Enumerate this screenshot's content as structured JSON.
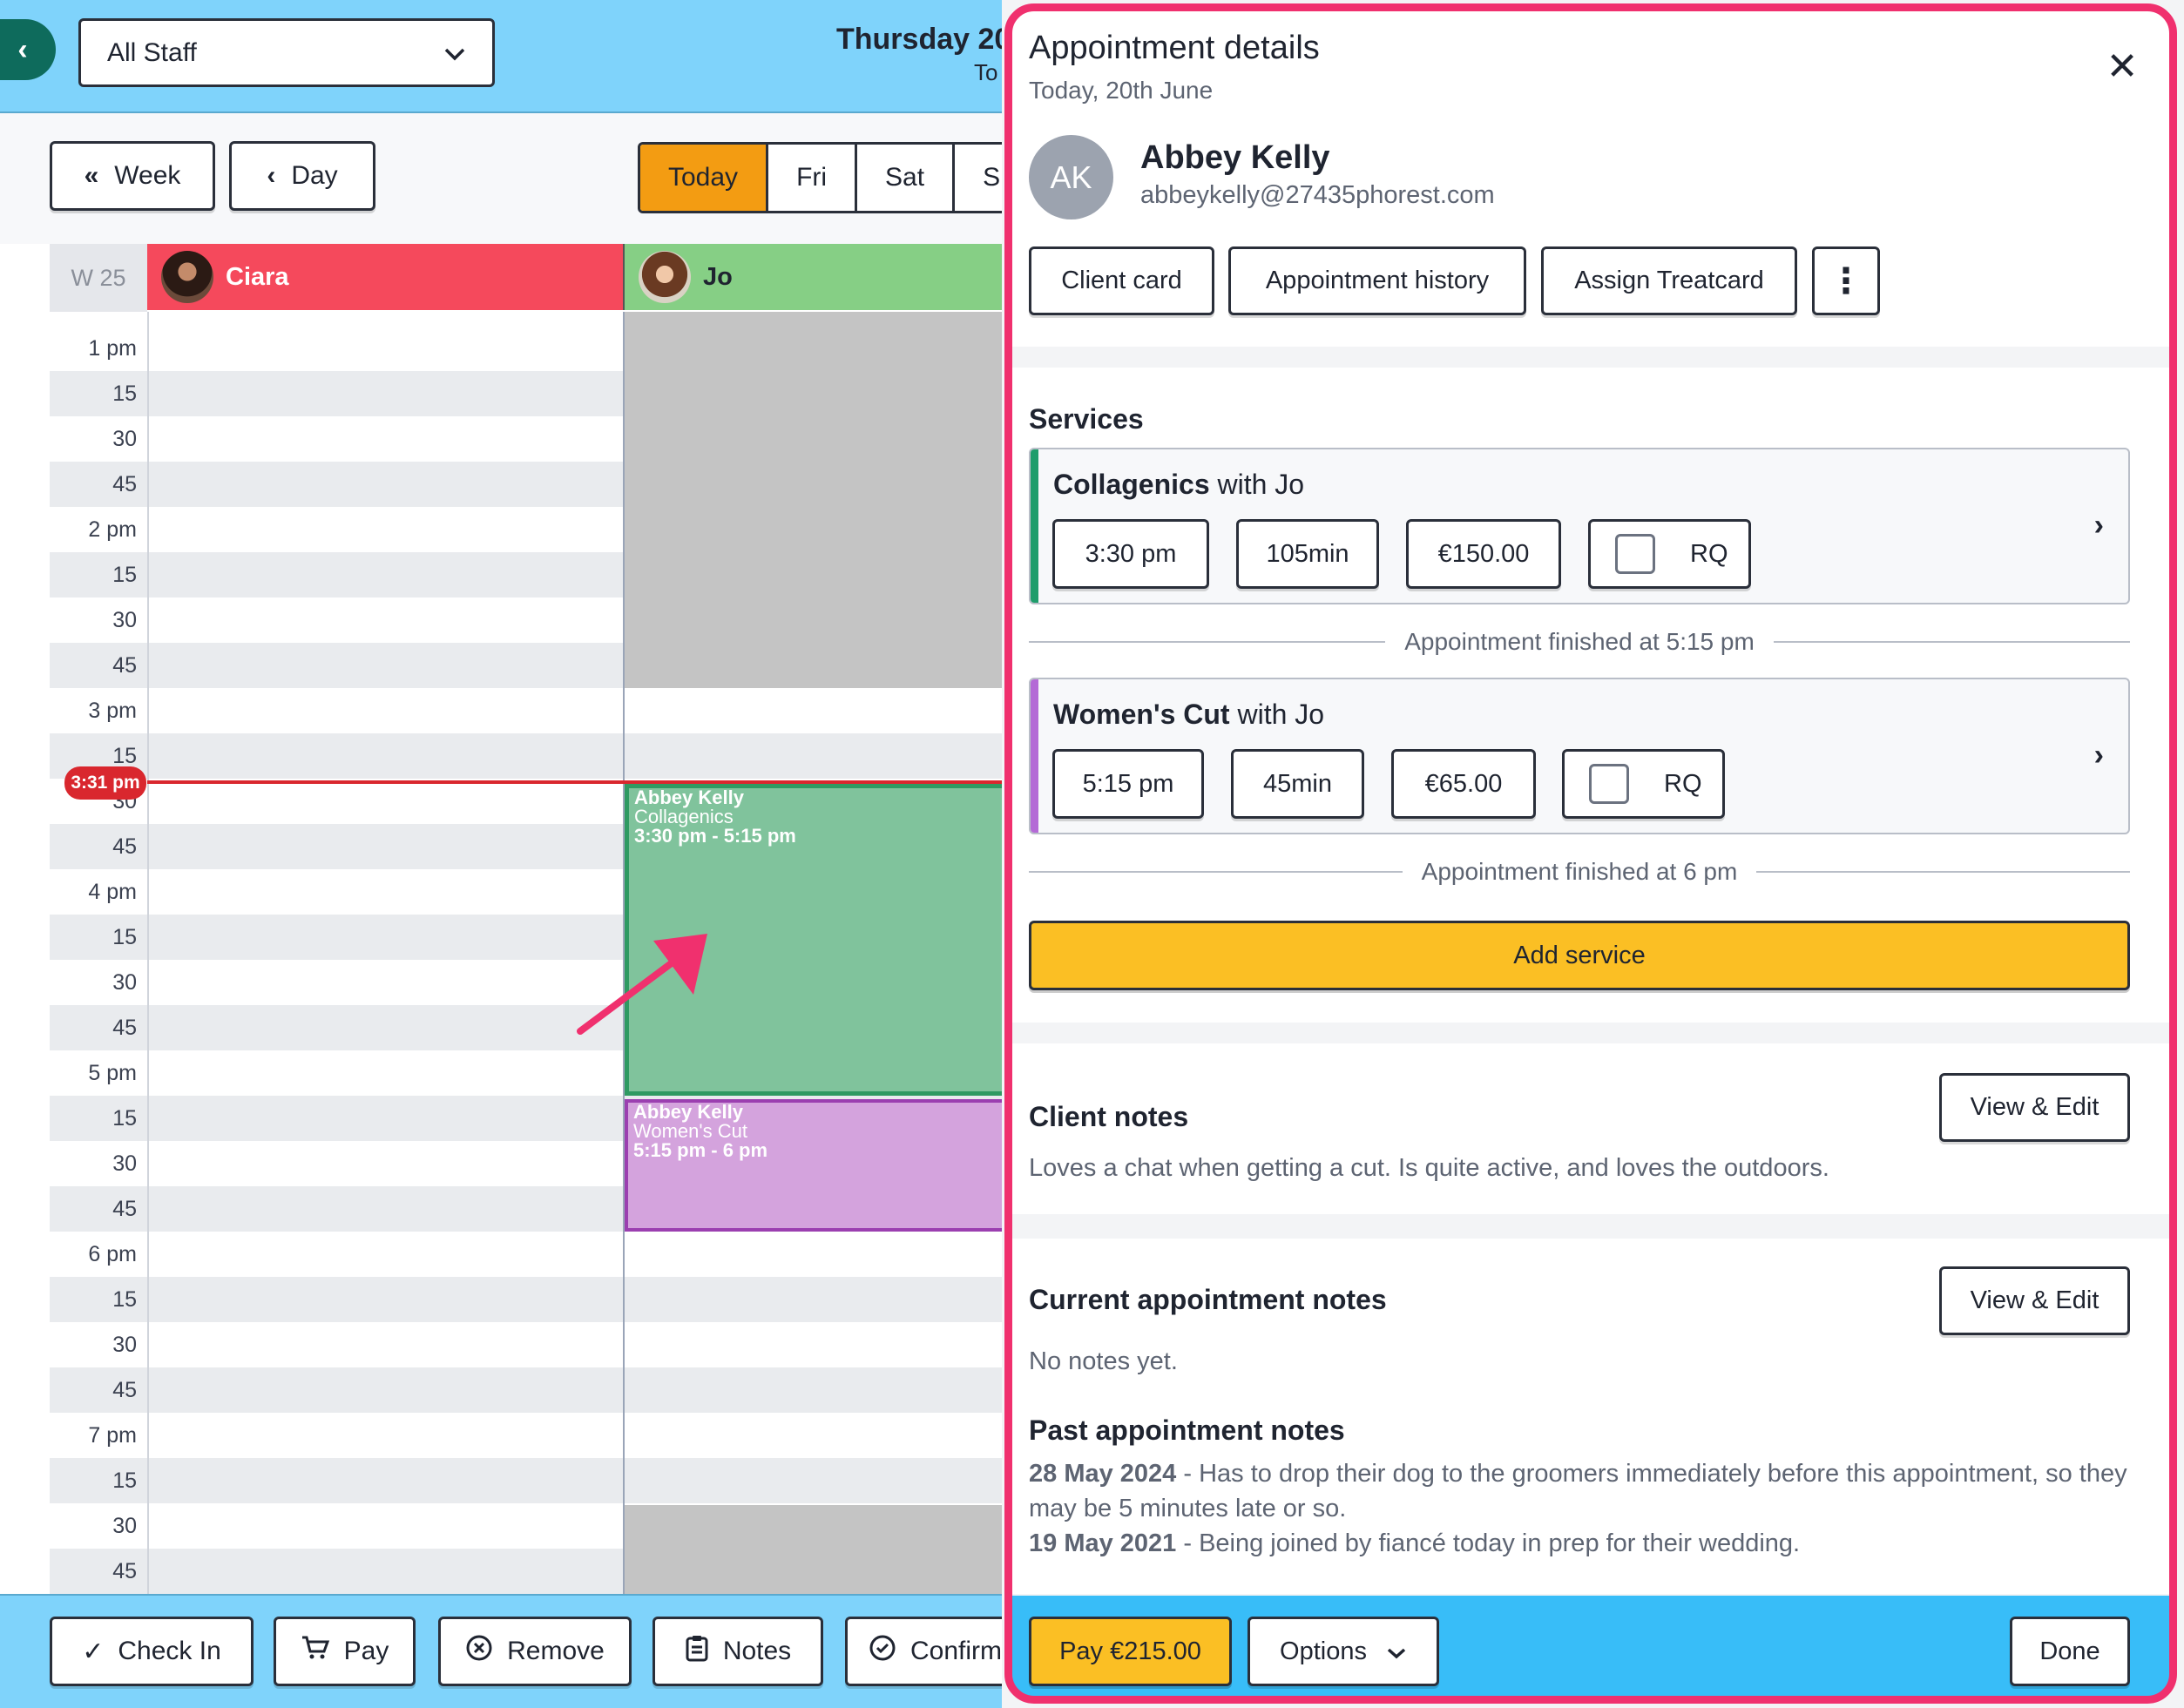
{
  "calendar": {
    "staff_select": "All Staff",
    "date_title": "Thursday 20",
    "date_sub": "To",
    "nav": {
      "week_label": "Week",
      "day_label": "Day"
    },
    "day_tabs": [
      "Today",
      "Fri",
      "Sat",
      "Su"
    ],
    "week_label": "W 25",
    "columns": [
      {
        "name": "Ciara",
        "color": "#f5495c"
      },
      {
        "name": "Jo",
        "color": "#86cf85"
      }
    ],
    "time_labels": [
      "1 pm",
      "15",
      "30",
      "45",
      "2 pm",
      "15",
      "30",
      "45",
      "3 pm",
      "15",
      "30",
      "45",
      "4 pm",
      "15",
      "30",
      "45",
      "5 pm",
      "15",
      "30",
      "45",
      "6 pm",
      "15",
      "30",
      "45",
      "7 pm",
      "15",
      "30",
      "45"
    ],
    "now_badge": "3:31 pm",
    "appointments": [
      {
        "client": "Abbey Kelly",
        "service": "Collagenics",
        "time": "3:30 pm - 5:15 pm",
        "color": "#80c39c"
      },
      {
        "client": "Abbey Kelly",
        "service": "Women's Cut",
        "time": "5:15 pm - 6 pm",
        "color": "#d4a3dd"
      }
    ],
    "bottom_actions": [
      "Check In",
      "Pay",
      "Remove",
      "Notes",
      "Confirm"
    ]
  },
  "panel": {
    "title": "Appointment details",
    "date": "Today, 20th June",
    "client": {
      "initials": "AK",
      "name": "Abbey Kelly",
      "email": "abbeykelly@27435phorest.com"
    },
    "actions": {
      "client_card": "Client card",
      "history": "Appointment history",
      "treatcard": "Assign Treatcard"
    },
    "services_title": "Services",
    "services": [
      {
        "name": "Collagenics",
        "with": "with Jo",
        "time": "3:30 pm",
        "duration": "105min",
        "price": "€150.00",
        "rq": "RQ",
        "stripe": "#1f9d6b",
        "finished": "Appointment finished at 5:15 pm"
      },
      {
        "name": "Women's Cut",
        "with": "with Jo",
        "time": "5:15 pm",
        "duration": "45min",
        "price": "€65.00",
        "rq": "RQ",
        "stripe": "#b46ad6",
        "finished": "Appointment finished at 6 pm"
      }
    ],
    "add_service": "Add service",
    "client_notes": {
      "title": "Client notes",
      "edit": "View & Edit",
      "text": "Loves a chat when getting a cut. Is quite active, and loves the outdoors."
    },
    "current_notes": {
      "title": "Current appointment notes",
      "edit": "View & Edit",
      "text": "No notes yet."
    },
    "past_notes": {
      "title": "Past appointment notes",
      "items": [
        {
          "date": "28 May 2024",
          "text": " - Has to drop their dog to the groomers immediately before this appointment, so they may be 5 minutes late or so."
        },
        {
          "date": "19 May 2021",
          "text": " - Being joined by fiancé today in prep for their wedding."
        }
      ]
    },
    "footer": {
      "pay": "Pay €215.00",
      "options": "Options",
      "done": "Done"
    }
  }
}
